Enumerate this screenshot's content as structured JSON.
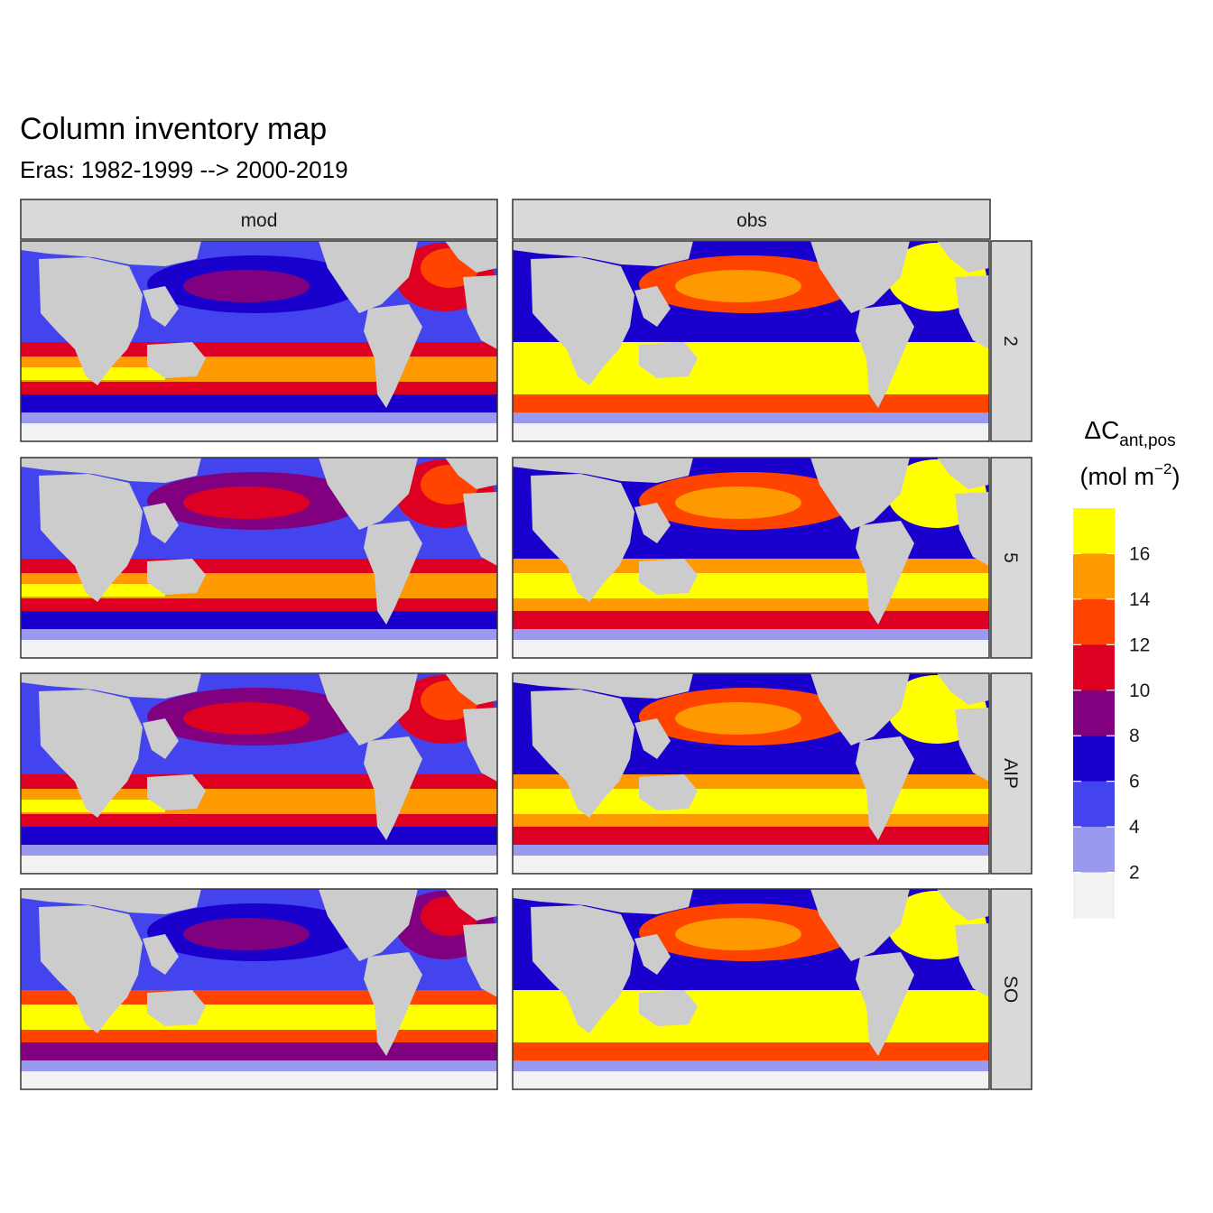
{
  "chart_data": {
    "type": "heatmap",
    "title": "Column inventory map",
    "subtitle": "Eras: 1982-1999 --> 2000-2019",
    "facet_columns": [
      "mod",
      "obs"
    ],
    "facet_rows": [
      "2",
      "5",
      "AIP",
      "SO"
    ],
    "legend": {
      "title_main": "ΔC",
      "title_subscript": "ant,pos",
      "unit_prefix": "(mol m",
      "unit_superscript": "−2",
      "unit_suffix": ")",
      "breaks": [
        2,
        4,
        6,
        8,
        10,
        12,
        14,
        16
      ],
      "bins": [
        {
          "range": "<2",
          "color": "#f2f2f2"
        },
        {
          "range": "2-4",
          "color": "#9999ee"
        },
        {
          "range": "4-6",
          "color": "#4444ee"
        },
        {
          "range": "6-8",
          "color": "#1a00cc"
        },
        {
          "range": "8-10",
          "color": "#800080"
        },
        {
          "range": "10-12",
          "color": "#dd0022"
        },
        {
          "range": "12-14",
          "color": "#ff4400"
        },
        {
          "range": "14-16",
          "color": "#ff9900"
        },
        {
          "range": ">16",
          "color": "#ffff00"
        }
      ],
      "placement": "right"
    },
    "land_color": "#cccccc",
    "panels": [
      {
        "column": "mod",
        "row": "2",
        "tropics_class": 2,
        "north_pacific_class": 3,
        "north_atlantic_class": 5,
        "southern_band_class": 5,
        "southern_core_class": 7
      },
      {
        "column": "obs",
        "row": "2",
        "tropics_class": 3,
        "north_pacific_class": 6,
        "north_atlantic_class": 8,
        "southern_band_class": 8,
        "southern_core_class": 8
      },
      {
        "column": "mod",
        "row": "5",
        "tropics_class": 2,
        "north_pacific_class": 4,
        "north_atlantic_class": 5,
        "southern_band_class": 5,
        "southern_core_class": 7
      },
      {
        "column": "obs",
        "row": "5",
        "tropics_class": 3,
        "north_pacific_class": 6,
        "north_atlantic_class": 8,
        "southern_band_class": 7,
        "southern_core_class": 8
      },
      {
        "column": "mod",
        "row": "AIP",
        "tropics_class": 2,
        "north_pacific_class": 4,
        "north_atlantic_class": 5,
        "southern_band_class": 5,
        "southern_core_class": 7
      },
      {
        "column": "obs",
        "row": "AIP",
        "tropics_class": 3,
        "north_pacific_class": 6,
        "north_atlantic_class": 8,
        "southern_band_class": 7,
        "southern_core_class": 8
      },
      {
        "column": "mod",
        "row": "SO",
        "tropics_class": 2,
        "north_pacific_class": 3,
        "north_atlantic_class": 4,
        "southern_band_class": 6,
        "southern_core_class": 8
      },
      {
        "column": "obs",
        "row": "SO",
        "tropics_class": 3,
        "north_pacific_class": 6,
        "north_atlantic_class": 8,
        "southern_band_class": 8,
        "southern_core_class": 8
      }
    ]
  }
}
